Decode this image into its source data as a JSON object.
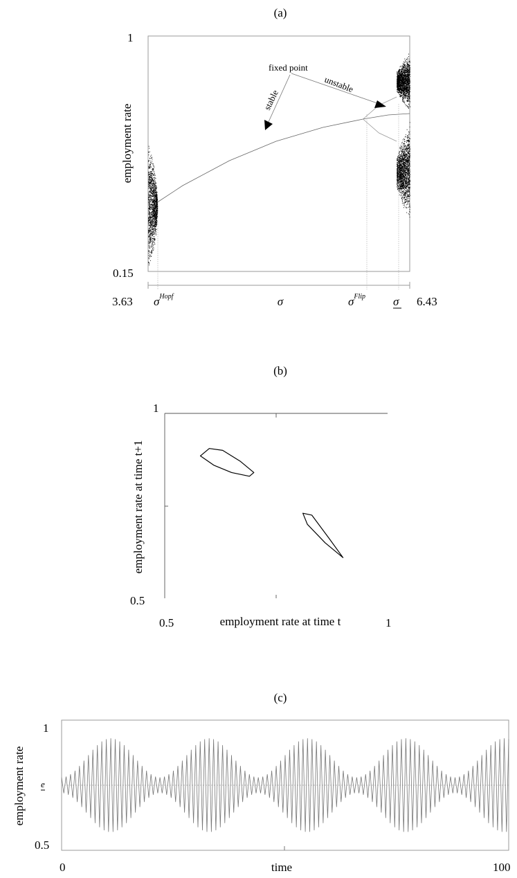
{
  "chart_data": [
    {
      "panel": "(a)",
      "type": "scatter",
      "subtype": "bifurcation diagram",
      "xlabel": "σ",
      "ylabel": "employment rate",
      "xlim": [
        3.63,
        6.43
      ],
      "ylim": [
        0.15,
        1
      ],
      "x_tick_labels": [
        "3.63",
        "6.43"
      ],
      "y_tick_labels": [
        "1",
        "0.15"
      ],
      "marked_parameters": [
        {
          "label": "σ",
          "sup": "Hopf",
          "x": 3.73
        },
        {
          "label": "σ",
          "sup": "Flip",
          "x": 5.93
        },
        {
          "label": "σ",
          "underline": true,
          "x": 6.29
        }
      ],
      "annotations": [
        "fixed point",
        "stable",
        "unstable"
      ],
      "fixed_point_curve": {
        "x": [
          3.73,
          4.0,
          4.5,
          5.0,
          5.5,
          5.93,
          6.2,
          6.43
        ],
        "y": [
          0.4,
          0.46,
          0.55,
          0.62,
          0.67,
          0.7,
          0.715,
          0.72
        ]
      },
      "hopf_region": {
        "x": [
          3.63,
          3.73
        ],
        "y_min": 0.15,
        "y_max": 0.64
      },
      "flip_branches": {
        "x": [
          5.93,
          6.1,
          6.29
        ],
        "upper": [
          0.7,
          0.75,
          0.78
        ],
        "lower": [
          0.7,
          0.65,
          0.62
        ]
      },
      "chaotic_region": {
        "x": [
          6.29,
          6.43
        ],
        "upper_band": [
          0.72,
          0.95
        ],
        "lower_band": [
          0.32,
          0.7
        ]
      }
    },
    {
      "panel": "(b)",
      "type": "scatter",
      "subtype": "phase portrait",
      "xlabel": "employment rate at time t",
      "ylabel": "employment rate at time t+1",
      "xlim": [
        0.5,
        1
      ],
      "ylim": [
        0.5,
        1
      ],
      "x_tick_labels": [
        "0.5",
        "1"
      ],
      "y_tick_labels": [
        "1",
        "0.5"
      ],
      "attractor_1": {
        "x": [
          0.58,
          0.6,
          0.63,
          0.67,
          0.7,
          0.69,
          0.65,
          0.61,
          0.58
        ],
        "y": [
          0.885,
          0.905,
          0.9,
          0.87,
          0.84,
          0.83,
          0.84,
          0.86,
          0.885
        ]
      },
      "attractor_2": {
        "x": [
          0.81,
          0.83,
          0.87,
          0.9,
          0.86,
          0.82,
          0.81
        ],
        "y": [
          0.73,
          0.725,
          0.66,
          0.61,
          0.65,
          0.7,
          0.73
        ]
      }
    },
    {
      "panel": "(c)",
      "type": "line",
      "subtype": "time series",
      "xlabel": "time",
      "ylabel": "employment rate",
      "xlim": [
        0,
        100
      ],
      "ylim": [
        0.5,
        1
      ],
      "x_tick_labels": [
        "0",
        "100"
      ],
      "y_tick_labels": [
        "1",
        "0.5"
      ],
      "reference_line": {
        "label": "e",
        "value": 0.75
      },
      "series": [
        {
          "model": {
            "mean": 0.75,
            "oscillation_period": 2,
            "envelope_period": 22,
            "amp_min": 0.03,
            "amp_max": 0.18,
            "t_start": 0,
            "t_end": 100,
            "step": 1
          }
        }
      ]
    }
  ]
}
